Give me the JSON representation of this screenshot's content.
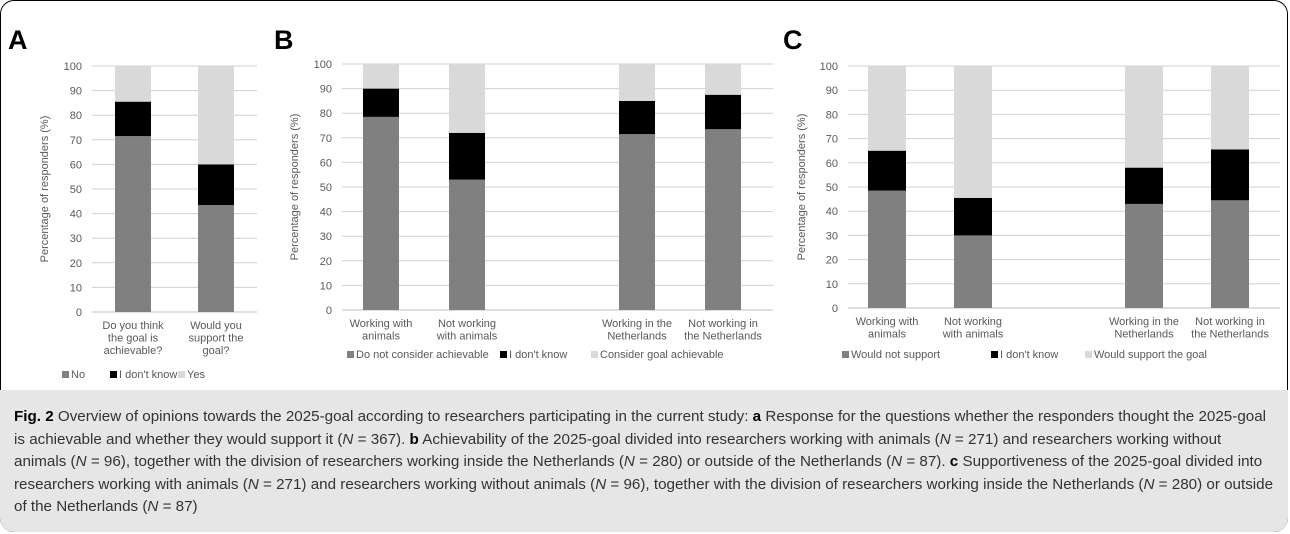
{
  "colors": {
    "no": "#808080",
    "dontknow": "#000000",
    "yes": "#d9d9d9",
    "grid": "#d0d0d0"
  },
  "chart_data": [
    {
      "panel": "A",
      "type": "bar",
      "stacked": true,
      "ylabel": "Percentage of responders (%)",
      "ylim": [
        0,
        100
      ],
      "yticks": [
        0,
        10,
        20,
        30,
        40,
        50,
        60,
        70,
        80,
        90,
        100
      ],
      "categories": [
        [
          "Do you think",
          "the goal is",
          "achievable?"
        ],
        [
          "Would you",
          "support the",
          "goal?"
        ]
      ],
      "series": [
        {
          "name": "No",
          "values": [
            71.5,
            43.5
          ]
        },
        {
          "name": "I don't know",
          "values": [
            14,
            16.5
          ]
        },
        {
          "name": "Yes",
          "values": [
            14.5,
            40
          ]
        }
      ],
      "legend_position": "bottom"
    },
    {
      "panel": "B",
      "type": "bar",
      "stacked": true,
      "ylabel": "Percentage of responders (%)",
      "ylim": [
        0,
        100
      ],
      "yticks": [
        0,
        10,
        20,
        30,
        40,
        50,
        60,
        70,
        80,
        90,
        100
      ],
      "categories": [
        [
          "Working with",
          "animals"
        ],
        [
          "Not working",
          "with animals"
        ],
        [
          "Working in the",
          "Netherlands"
        ],
        [
          "Not working in",
          "the Netherlands"
        ]
      ],
      "series": [
        {
          "name": "Do not consider achievable",
          "values": [
            78.5,
            53,
            71.5,
            73.5
          ]
        },
        {
          "name": "I don't know",
          "values": [
            11.5,
            19,
            13.5,
            14
          ]
        },
        {
          "name": "Consider goal achievable",
          "values": [
            10,
            28,
            15,
            12.5
          ]
        }
      ],
      "legend_position": "bottom"
    },
    {
      "panel": "C",
      "type": "bar",
      "stacked": true,
      "ylabel": "Percentage of responders (%)",
      "ylim": [
        0,
        100
      ],
      "yticks": [
        0,
        10,
        20,
        30,
        40,
        50,
        60,
        70,
        80,
        90,
        100
      ],
      "categories": [
        [
          "Working with",
          "animals"
        ],
        [
          "Not working",
          "with animals"
        ],
        [
          "Working in the",
          "Netherlands"
        ],
        [
          "Not working in",
          "the Netherlands"
        ]
      ],
      "series": [
        {
          "name": "Would not support",
          "values": [
            48.5,
            30,
            43,
            44.5
          ]
        },
        {
          "name": "I don't know",
          "values": [
            16.5,
            15.5,
            15,
            21
          ]
        },
        {
          "name": "Would support the goal",
          "values": [
            35,
            54.5,
            42,
            34.5
          ]
        }
      ],
      "legend_position": "bottom"
    }
  ],
  "caption": {
    "label": "Fig. 2",
    "segments": [
      {
        "t": " Overview of opinions towards the 2025-goal according to researchers participating in the current study: ",
        "s": "n"
      },
      {
        "t": "a",
        "s": "b"
      },
      {
        "t": " Response for the questions whether the responders thought the 2025-goal is achievable and whether they would support it (",
        "s": "n"
      },
      {
        "t": "N",
        "s": "i"
      },
      {
        "t": " = 367). ",
        "s": "n"
      },
      {
        "t": "b",
        "s": "b"
      },
      {
        "t": " Achievability of the 2025-goal divided into researchers working with animals (",
        "s": "n"
      },
      {
        "t": "N",
        "s": "i"
      },
      {
        "t": " = 271) and researchers working without animals (",
        "s": "n"
      },
      {
        "t": "N",
        "s": "i"
      },
      {
        "t": " = 96), together with the division of researchers working inside the Netherlands (",
        "s": "n"
      },
      {
        "t": "N",
        "s": "i"
      },
      {
        "t": " = 280) or outside of the Netherlands (",
        "s": "n"
      },
      {
        "t": "N",
        "s": "i"
      },
      {
        "t": " = 87). ",
        "s": "n"
      },
      {
        "t": "c",
        "s": "b"
      },
      {
        "t": " Supportiveness of the 2025-goal divided into researchers working with animals (",
        "s": "n"
      },
      {
        "t": "N",
        "s": "i"
      },
      {
        "t": " = 271) and researchers working without animals (",
        "s": "n"
      },
      {
        "t": "N",
        "s": "i"
      },
      {
        "t": " = 96), together with the division of researchers working inside the Netherlands (",
        "s": "n"
      },
      {
        "t": "N",
        "s": "i"
      },
      {
        "t": " = 280) or outside of the Netherlands (",
        "s": "n"
      },
      {
        "t": "N",
        "s": "i"
      },
      {
        "t": " = 87)",
        "s": "n"
      }
    ]
  }
}
